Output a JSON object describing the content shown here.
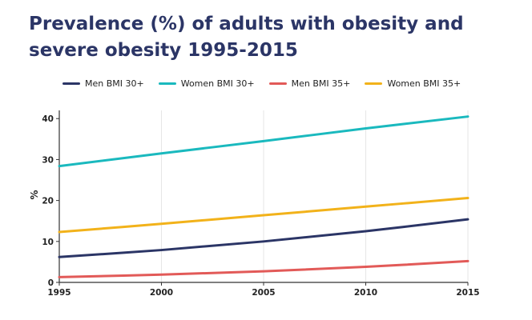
{
  "chart_data": {
    "type": "line",
    "title": "Prevalence (%) of adults with obesity and severe obesity 1995-2015",
    "xlabel": "",
    "ylabel": "%",
    "x": [
      1995,
      2000,
      2005,
      2010,
      2015
    ],
    "xlim": [
      1995,
      2015
    ],
    "ylim": [
      0,
      42
    ],
    "yticks": [
      0,
      10,
      20,
      30,
      40
    ],
    "xtick_labels": [
      "1995",
      "2000",
      "2005",
      "2010",
      "2015"
    ],
    "ytick_labels": [
      "0",
      "10",
      "20",
      "30",
      "40"
    ],
    "grid": "vertical",
    "legend": "top",
    "series": [
      {
        "name": "Men BMI 30+",
        "color": "#2b3566",
        "values": [
          6.2,
          7.9,
          10.0,
          12.5,
          15.4
        ]
      },
      {
        "name": "Women BMI 30+",
        "color": "#1ab9be",
        "values": [
          28.4,
          31.5,
          34.5,
          37.6,
          40.5
        ]
      },
      {
        "name": "Men BMI 35+",
        "color": "#e25a58",
        "values": [
          1.3,
          1.9,
          2.7,
          3.8,
          5.2
        ]
      },
      {
        "name": "Women BMI 35+",
        "color": "#f2b21a",
        "values": [
          12.3,
          14.3,
          16.4,
          18.5,
          20.6
        ]
      }
    ]
  }
}
